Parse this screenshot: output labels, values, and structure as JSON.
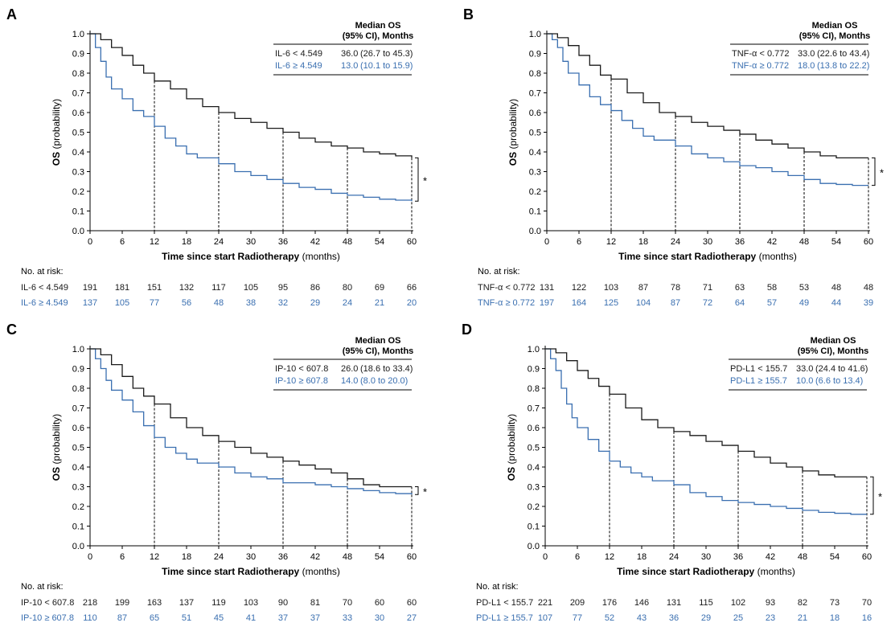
{
  "colors": {
    "high": "#3a6fb0",
    "low": "#1a1a1a",
    "ref": "#000000"
  },
  "common": {
    "ylabel_bold": "OS",
    "ylabel_rest": "(probability)",
    "xlabel_bold": "Time since start Radiotherapy",
    "xlabel_rest": "(months)",
    "risk_title": "No. at risk:",
    "legend_title_1": "Median OS",
    "legend_title_2": "(95%  CI), Months",
    "sig_mark": "*"
  },
  "chart_data": [
    {
      "panel": "A",
      "type": "line",
      "xlim": [
        0,
        60
      ],
      "ylim": [
        0,
        1.0
      ],
      "xticks": [
        0,
        6,
        12,
        18,
        24,
        30,
        36,
        42,
        48,
        54,
        60
      ],
      "yticks": [
        "0.0",
        "0.1",
        "0.2",
        "0.3",
        "0.4",
        "0.5",
        "0.6",
        "0.7",
        "0.8",
        "0.9",
        "1.0"
      ],
      "ref_times": [
        12,
        24,
        36,
        48,
        60
      ],
      "legend": [
        {
          "label": "IL-6 < 4.549",
          "median": "36.0",
          "ci": "(26.7 to 45.3)"
        },
        {
          "label": "IL-6 ≥ 4.549",
          "median": "13.0",
          "ci": "(10.1 to 15.9)"
        }
      ],
      "series": [
        {
          "x": [
            0,
            2,
            4,
            6,
            8,
            10,
            12,
            15,
            18,
            21,
            24,
            27,
            30,
            33,
            36,
            39,
            42,
            45,
            48,
            51,
            54,
            57,
            60
          ],
          "y": [
            1.0,
            0.97,
            0.93,
            0.89,
            0.84,
            0.8,
            0.76,
            0.72,
            0.67,
            0.63,
            0.6,
            0.57,
            0.55,
            0.52,
            0.5,
            0.47,
            0.45,
            0.43,
            0.42,
            0.4,
            0.39,
            0.38,
            0.37
          ]
        },
        {
          "x": [
            0,
            1,
            2,
            3,
            4,
            6,
            8,
            10,
            12,
            14,
            16,
            18,
            20,
            24,
            27,
            30,
            33,
            36,
            39,
            42,
            45,
            48,
            51,
            54,
            57,
            60
          ],
          "y": [
            1.0,
            0.93,
            0.86,
            0.78,
            0.72,
            0.67,
            0.61,
            0.58,
            0.53,
            0.47,
            0.43,
            0.39,
            0.37,
            0.34,
            0.3,
            0.28,
            0.26,
            0.24,
            0.22,
            0.21,
            0.19,
            0.18,
            0.17,
            0.16,
            0.155,
            0.15
          ]
        }
      ],
      "risk": [
        {
          "label": "IL-6 < 4.549",
          "counts": [
            191,
            181,
            151,
            132,
            117,
            105,
            95,
            86,
            80,
            69,
            66
          ]
        },
        {
          "label": "IL-6 ≥ 4.549",
          "counts": [
            137,
            105,
            77,
            56,
            48,
            38,
            32,
            29,
            24,
            21,
            20
          ]
        }
      ]
    },
    {
      "panel": "B",
      "type": "line",
      "xlim": [
        0,
        60
      ],
      "ylim": [
        0,
        1.0
      ],
      "xticks": [
        0,
        6,
        12,
        18,
        24,
        30,
        36,
        42,
        48,
        54,
        60
      ],
      "yticks": [
        "0.0",
        "0.1",
        "0.2",
        "0.3",
        "0.4",
        "0.5",
        "0.6",
        "0.7",
        "0.8",
        "0.9",
        "1.0"
      ],
      "ref_times": [
        12,
        24,
        36,
        48,
        60
      ],
      "legend": [
        {
          "label": "TNF-α < 0.772",
          "median": "33.0",
          "ci": "(22.6 to 43.4)"
        },
        {
          "label": "TNF-α ≥ 0.772",
          "median": "18.0",
          "ci": "(13.8 to 22.2)"
        }
      ],
      "series": [
        {
          "x": [
            0,
            2,
            4,
            6,
            8,
            10,
            12,
            15,
            18,
            21,
            24,
            27,
            30,
            33,
            36,
            39,
            42,
            45,
            48,
            51,
            54,
            57,
            60
          ],
          "y": [
            1.0,
            0.98,
            0.94,
            0.89,
            0.84,
            0.79,
            0.77,
            0.7,
            0.65,
            0.6,
            0.58,
            0.55,
            0.53,
            0.51,
            0.49,
            0.46,
            0.44,
            0.42,
            0.4,
            0.38,
            0.37,
            0.37,
            0.37
          ]
        },
        {
          "x": [
            0,
            1,
            2,
            3,
            4,
            6,
            8,
            10,
            12,
            14,
            16,
            18,
            20,
            24,
            27,
            30,
            33,
            36,
            39,
            42,
            45,
            48,
            51,
            54,
            57,
            60
          ],
          "y": [
            1.0,
            0.97,
            0.93,
            0.86,
            0.8,
            0.74,
            0.68,
            0.64,
            0.61,
            0.56,
            0.52,
            0.48,
            0.46,
            0.43,
            0.39,
            0.37,
            0.35,
            0.33,
            0.32,
            0.3,
            0.28,
            0.26,
            0.24,
            0.235,
            0.23,
            0.23
          ]
        }
      ],
      "risk": [
        {
          "label": "TNF-α < 0.772",
          "counts": [
            131,
            122,
            103,
            87,
            78,
            71,
            63,
            58,
            53,
            48,
            48
          ]
        },
        {
          "label": "TNF-α ≥ 0.772",
          "counts": [
            197,
            164,
            125,
            104,
            87,
            72,
            64,
            57,
            49,
            44,
            39
          ]
        }
      ]
    },
    {
      "panel": "C",
      "type": "line",
      "xlim": [
        0,
        60
      ],
      "ylim": [
        0,
        1.0
      ],
      "xticks": [
        0,
        6,
        12,
        18,
        24,
        30,
        36,
        42,
        48,
        54,
        60
      ],
      "yticks": [
        "0.0",
        "0.1",
        "0.2",
        "0.3",
        "0.4",
        "0.5",
        "0.6",
        "0.7",
        "0.8",
        "0.9",
        "1.0"
      ],
      "ref_times": [
        12,
        24,
        36,
        48,
        60
      ],
      "legend": [
        {
          "label": "IP-10 < 607.8",
          "median": "26.0",
          "ci": "(18.6 to 33.4)"
        },
        {
          "label": "IP-10 ≥ 607.8",
          "median": "14.0",
          "ci": "(8.0 to 20.0)"
        }
      ],
      "series": [
        {
          "x": [
            0,
            2,
            4,
            6,
            8,
            10,
            12,
            15,
            18,
            21,
            24,
            27,
            30,
            33,
            36,
            39,
            42,
            45,
            48,
            51,
            54,
            57,
            60
          ],
          "y": [
            1.0,
            0.97,
            0.92,
            0.86,
            0.8,
            0.76,
            0.72,
            0.65,
            0.6,
            0.56,
            0.53,
            0.5,
            0.47,
            0.45,
            0.43,
            0.41,
            0.39,
            0.37,
            0.34,
            0.31,
            0.3,
            0.3,
            0.3
          ]
        },
        {
          "x": [
            0,
            1,
            2,
            3,
            4,
            6,
            8,
            10,
            12,
            14,
            16,
            18,
            20,
            24,
            27,
            30,
            33,
            36,
            39,
            42,
            45,
            48,
            51,
            54,
            57,
            60
          ],
          "y": [
            1.0,
            0.95,
            0.9,
            0.84,
            0.79,
            0.74,
            0.68,
            0.61,
            0.55,
            0.5,
            0.47,
            0.44,
            0.42,
            0.4,
            0.37,
            0.35,
            0.34,
            0.32,
            0.32,
            0.31,
            0.3,
            0.29,
            0.28,
            0.27,
            0.265,
            0.26
          ]
        }
      ],
      "risk": [
        {
          "label": "IP-10 < 607.8",
          "counts": [
            218,
            199,
            163,
            137,
            119,
            103,
            90,
            81,
            70,
            60,
            60
          ]
        },
        {
          "label": "IP-10 ≥ 607.8",
          "counts": [
            110,
            87,
            65,
            51,
            45,
            41,
            37,
            37,
            33,
            30,
            27
          ]
        }
      ]
    },
    {
      "panel": "D",
      "type": "line",
      "xlim": [
        0,
        60
      ],
      "ylim": [
        0,
        1.0
      ],
      "xticks": [
        0,
        6,
        12,
        18,
        24,
        30,
        36,
        42,
        48,
        54,
        60
      ],
      "yticks": [
        "0.0",
        "0.1",
        "0.2",
        "0.3",
        "0.4",
        "0.5",
        "0.6",
        "0.7",
        "0.8",
        "0.9",
        "1.0"
      ],
      "ref_times": [
        12,
        24,
        36,
        48,
        60
      ],
      "legend": [
        {
          "label": "PD-L1 < 155.7",
          "median": "33.0",
          "ci": "(24.4 to 41.6)"
        },
        {
          "label": "PD-L1 ≥ 155.7",
          "median": "10.0",
          "ci": "(6.6 to 13.4)"
        }
      ],
      "series": [
        {
          "x": [
            0,
            2,
            4,
            6,
            8,
            10,
            12,
            15,
            18,
            21,
            24,
            27,
            30,
            33,
            36,
            39,
            42,
            45,
            48,
            51,
            54,
            57,
            60
          ],
          "y": [
            1.0,
            0.98,
            0.94,
            0.89,
            0.85,
            0.81,
            0.77,
            0.7,
            0.64,
            0.6,
            0.58,
            0.56,
            0.53,
            0.51,
            0.48,
            0.45,
            0.42,
            0.4,
            0.38,
            0.36,
            0.35,
            0.35,
            0.35
          ]
        },
        {
          "x": [
            0,
            1,
            2,
            3,
            4,
            5,
            6,
            8,
            10,
            12,
            14,
            16,
            18,
            20,
            24,
            27,
            30,
            33,
            36,
            39,
            42,
            45,
            48,
            51,
            54,
            57,
            60
          ],
          "y": [
            1.0,
            0.95,
            0.89,
            0.8,
            0.72,
            0.65,
            0.6,
            0.54,
            0.48,
            0.43,
            0.4,
            0.37,
            0.35,
            0.33,
            0.31,
            0.27,
            0.25,
            0.23,
            0.22,
            0.21,
            0.2,
            0.19,
            0.18,
            0.17,
            0.165,
            0.16,
            0.16
          ]
        }
      ],
      "risk": [
        {
          "label": "PD-L1 < 155.7",
          "counts": [
            221,
            209,
            176,
            146,
            131,
            115,
            102,
            93,
            82,
            73,
            70
          ]
        },
        {
          "label": "PD-L1 ≥ 155.7",
          "counts": [
            107,
            77,
            52,
            43,
            36,
            29,
            25,
            23,
            21,
            18,
            16
          ]
        }
      ]
    }
  ]
}
